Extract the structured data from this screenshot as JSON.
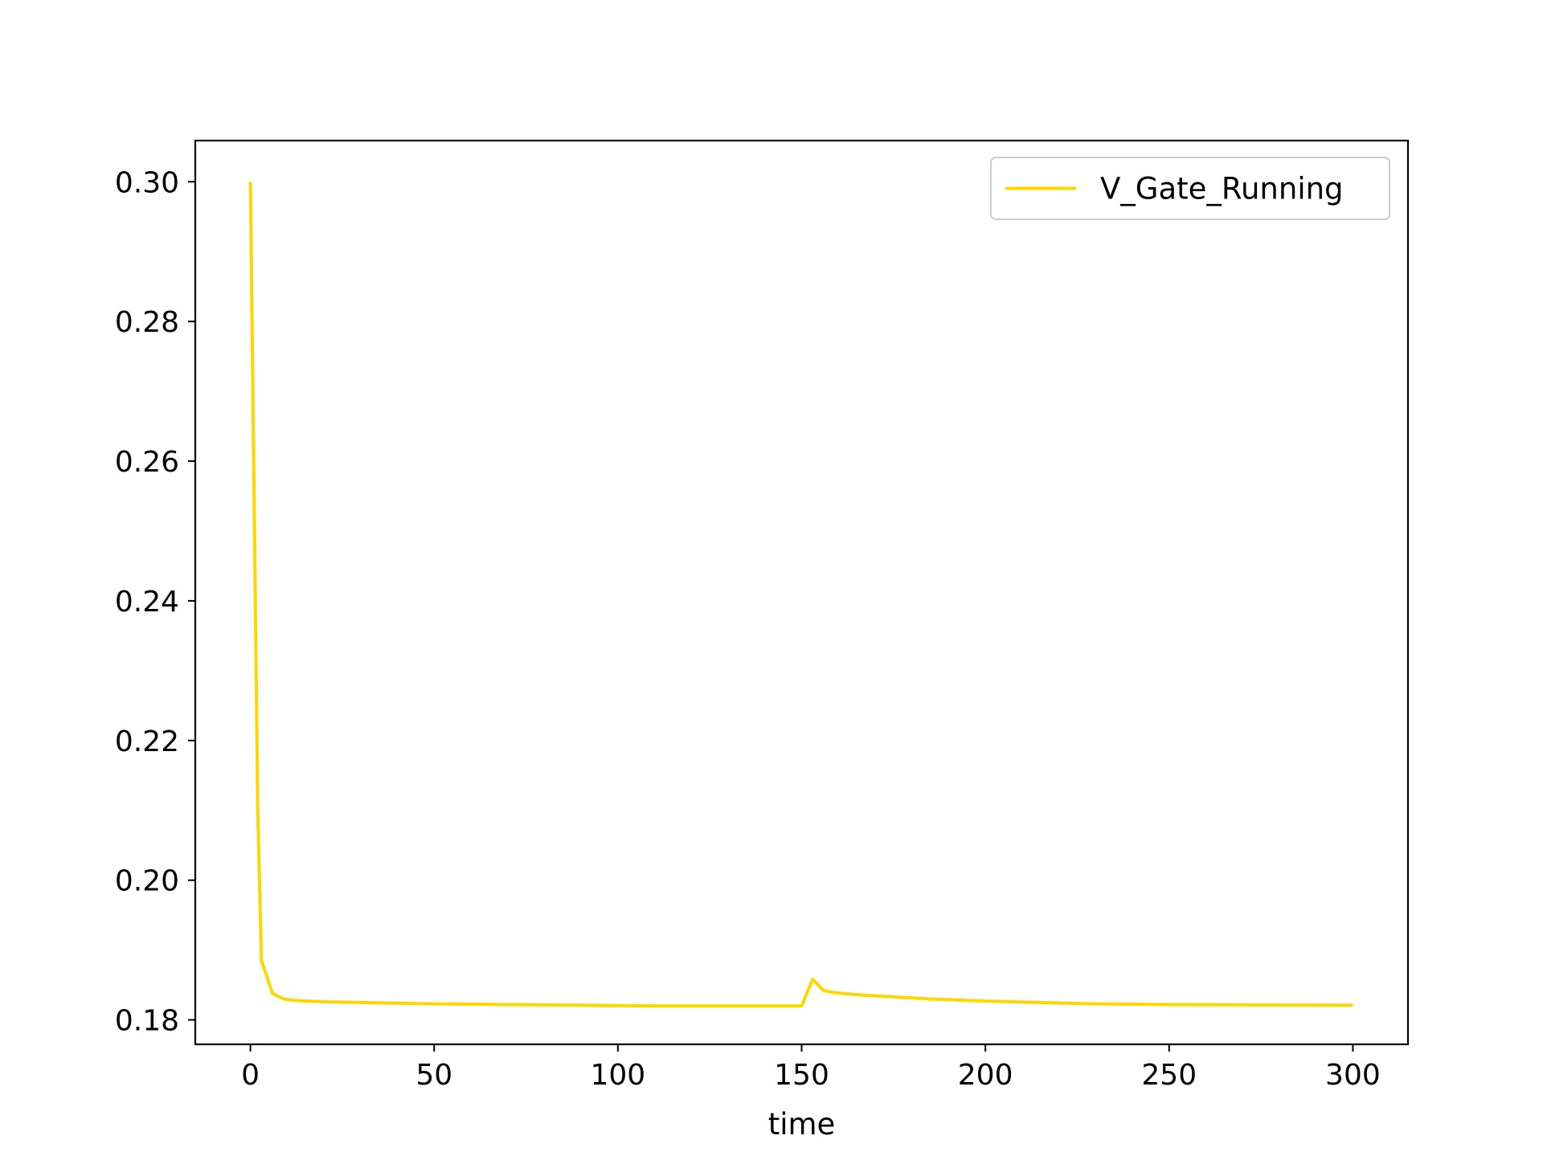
{
  "chart_data": {
    "type": "line",
    "title": "",
    "xlabel": "time",
    "ylabel": "",
    "xlim": [
      -15,
      315
    ],
    "ylim": [
      0.1765,
      0.3059
    ],
    "xticks": [
      0,
      50,
      100,
      150,
      200,
      250,
      300
    ],
    "yticks": [
      0.18,
      0.2,
      0.22,
      0.24,
      0.26,
      0.28,
      0.3
    ],
    "xtick_labels": [
      "0",
      "50",
      "100",
      "150",
      "200",
      "250",
      "300"
    ],
    "ytick_labels": [
      "0.18",
      "0.20",
      "0.22",
      "0.24",
      "0.26",
      "0.28",
      "0.30"
    ],
    "grid": false,
    "legend_position": "upper right",
    "series": [
      {
        "name": "V_Gate_Running",
        "color": "#FFD700",
        "x": [
          0,
          1,
          2,
          3,
          6,
          9,
          12,
          15,
          20,
          30,
          40,
          50,
          60,
          70,
          80,
          90,
          100,
          110,
          120,
          130,
          140,
          147,
          150,
          153,
          156,
          159,
          165,
          175,
          185,
          200,
          215,
          230,
          250,
          270,
          300
        ],
        "y": [
          0.3,
          0.255,
          0.21,
          0.1885,
          0.1838,
          0.183,
          0.1828,
          0.1827,
          0.1826,
          0.1825,
          0.1824,
          0.1823,
          0.18225,
          0.1822,
          0.18215,
          0.1821,
          0.18205,
          0.182,
          0.182,
          0.182,
          0.182,
          0.182,
          0.182,
          0.1858,
          0.1842,
          0.1839,
          0.1836,
          0.1833,
          0.183,
          0.1827,
          0.1825,
          0.1823,
          0.1822,
          0.18215,
          0.1821
        ]
      }
    ]
  }
}
